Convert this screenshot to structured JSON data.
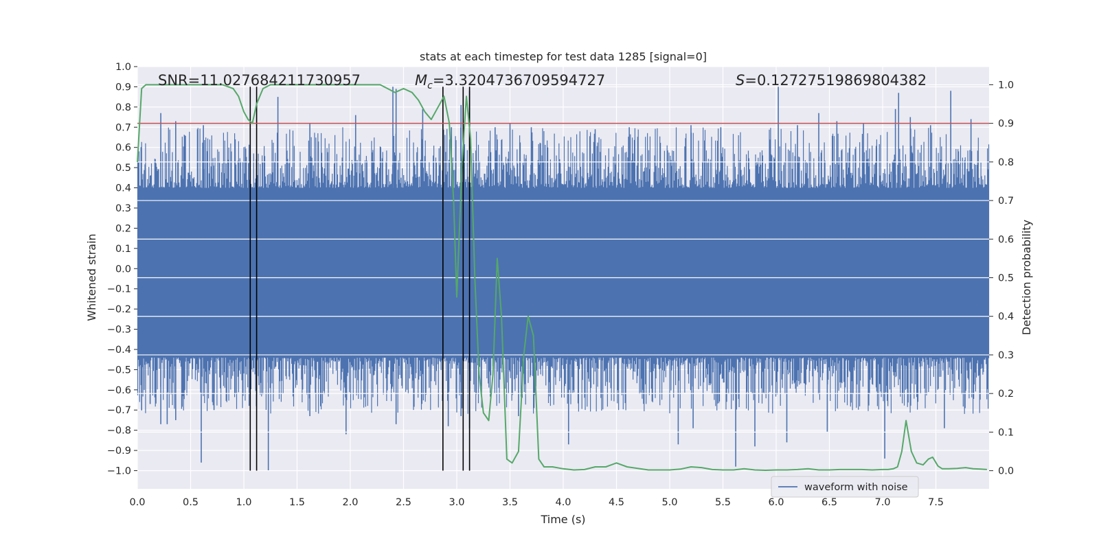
{
  "chart_data": {
    "type": "line",
    "title": "stats at each timestep for test data 1285 [signal=0]",
    "xlabel": "Time (s)",
    "ylabel": "Whitened strain",
    "y2label": "Detection probability",
    "xlim": [
      0.0,
      8.0
    ],
    "ylim": [
      -1.09,
      1.0
    ],
    "y2lim": [
      -0.047,
      1.047
    ],
    "xticks": [
      0.0,
      0.5,
      1.0,
      1.5,
      2.0,
      2.5,
      3.0,
      3.5,
      4.0,
      4.5,
      5.0,
      5.5,
      6.0,
      6.5,
      7.0,
      7.5
    ],
    "xtick_labels": [
      "0.0",
      "0.5",
      "1.0",
      "1.5",
      "2.0",
      "2.5",
      "3.0",
      "3.5",
      "4.0",
      "4.5",
      "5.0",
      "5.5",
      "6.0",
      "6.5",
      "7.0",
      "7.5"
    ],
    "yticks": [
      1.0,
      0.9,
      0.8,
      0.7,
      0.6,
      0.5,
      0.4,
      0.3,
      0.2,
      0.1,
      0.0,
      -0.1,
      -0.2,
      -0.3,
      -0.4,
      -0.5,
      -0.6,
      -0.7,
      -0.8,
      -0.9,
      -1.0
    ],
    "ytick_labels": [
      "1.0",
      "0.9",
      "0.8",
      "0.7",
      "0.6",
      "0.5",
      "0.4",
      "0.3",
      "0.2",
      "0.1",
      "0.0",
      "−0.1",
      "−0.2",
      "−0.3",
      "−0.4",
      "−0.5",
      "−0.6",
      "−0.7",
      "−0.8",
      "−0.9",
      "−1.0"
    ],
    "y2ticks": [
      1.0,
      0.9,
      0.8,
      0.7,
      0.6,
      0.5,
      0.4,
      0.3,
      0.2,
      0.1,
      0.0
    ],
    "y2tick_labels": [
      "1.0",
      "0.9",
      "0.8",
      "0.7",
      "0.6",
      "0.5",
      "0.4",
      "0.3",
      "0.2",
      "0.1",
      "0.0"
    ],
    "annotations": {
      "snr": "SNR=11.027684211730957",
      "mc_symbol": "M",
      "mc_sub": "c",
      "mc_value": "=3.3204736709594727",
      "s_symbol": "S",
      "s_value": "=0.12727519869804382"
    },
    "threshold": {
      "y2": 0.9,
      "color": "#c44e52"
    },
    "vertical_lines": [
      1.06,
      1.12,
      2.87,
      3.06,
      3.12
    ],
    "waveform": {
      "name": "waveform with noise",
      "color": "#4c72b0",
      "core_lo": -0.44,
      "core_hi": 0.4,
      "n_spikes": 1300,
      "peak_up": [
        [
          0.22,
          0.77
        ],
        [
          0.36,
          0.73
        ],
        [
          0.62,
          0.71
        ],
        [
          1.32,
          0.85
        ],
        [
          1.62,
          0.72
        ],
        [
          2.05,
          0.76
        ],
        [
          2.4,
          0.9
        ],
        [
          2.43,
          0.89
        ],
        [
          2.68,
          0.79
        ],
        [
          2.95,
          0.7
        ],
        [
          3.04,
          0.81
        ],
        [
          3.12,
          0.88
        ],
        [
          3.36,
          0.7
        ],
        [
          3.5,
          0.72
        ],
        [
          3.7,
          0.7
        ],
        [
          4.3,
          0.69
        ],
        [
          4.62,
          0.7
        ],
        [
          5.2,
          0.71
        ],
        [
          5.48,
          0.7
        ],
        [
          6.02,
          0.9
        ],
        [
          6.2,
          0.71
        ],
        [
          6.4,
          0.77
        ],
        [
          6.57,
          0.73
        ],
        [
          6.82,
          0.72
        ],
        [
          7.12,
          0.79
        ],
        [
          7.15,
          0.87
        ],
        [
          7.26,
          0.75
        ],
        [
          7.45,
          0.71
        ],
        [
          7.64,
          0.88
        ],
        [
          7.83,
          0.74
        ]
      ],
      "peak_down": [
        [
          0.04,
          -0.7
        ],
        [
          0.12,
          -0.67
        ],
        [
          0.22,
          -0.77
        ],
        [
          0.28,
          -0.77
        ],
        [
          0.36,
          -0.75
        ],
        [
          0.6,
          -0.96
        ],
        [
          0.72,
          -0.7
        ],
        [
          1.23,
          -1.0
        ],
        [
          1.62,
          -0.73
        ],
        [
          1.96,
          -0.82
        ],
        [
          2.43,
          -0.77
        ],
        [
          2.92,
          -0.78
        ],
        [
          3.04,
          -0.73
        ],
        [
          3.12,
          -0.79
        ],
        [
          3.58,
          -0.73
        ],
        [
          4.05,
          -0.87
        ],
        [
          5.08,
          -0.87
        ],
        [
          5.22,
          -0.79
        ],
        [
          5.62,
          -0.98
        ],
        [
          5.8,
          -0.88
        ],
        [
          6.1,
          -0.86
        ],
        [
          6.48,
          -0.81
        ],
        [
          7.02,
          -0.94
        ],
        [
          7.58,
          -0.79
        ]
      ]
    },
    "detection_probability": {
      "name": "detection probability",
      "color": "#55a868",
      "x": [
        0.0,
        0.04,
        0.08,
        0.12,
        0.2,
        0.3,
        0.4,
        0.5,
        0.6,
        0.7,
        0.8,
        0.9,
        0.95,
        1.0,
        1.04,
        1.08,
        1.12,
        1.18,
        1.25,
        1.35,
        1.5,
        1.7,
        1.9,
        2.1,
        2.2,
        2.28,
        2.35,
        2.42,
        2.5,
        2.58,
        2.64,
        2.7,
        2.76,
        2.82,
        2.88,
        2.93,
        2.97,
        3.0,
        3.05,
        3.09,
        3.13,
        3.17,
        3.21,
        3.25,
        3.3,
        3.34,
        3.38,
        3.42,
        3.47,
        3.52,
        3.58,
        3.63,
        3.67,
        3.72,
        3.77,
        3.82,
        3.9,
        4.0,
        4.1,
        4.2,
        4.3,
        4.4,
        4.5,
        4.6,
        4.7,
        4.8,
        4.9,
        5.0,
        5.1,
        5.2,
        5.3,
        5.4,
        5.5,
        5.6,
        5.7,
        5.8,
        5.9,
        6.0,
        6.1,
        6.2,
        6.3,
        6.4,
        6.5,
        6.6,
        6.7,
        6.8,
        6.9,
        7.0,
        7.05,
        7.1,
        7.14,
        7.18,
        7.22,
        7.27,
        7.32,
        7.38,
        7.43,
        7.47,
        7.52,
        7.56,
        7.62,
        7.7,
        7.78,
        7.85,
        7.92,
        7.98
      ],
      "y": [
        0.8,
        0.99,
        1.0,
        1.0,
        1.0,
        1.0,
        1.0,
        1.0,
        1.0,
        1.0,
        1.0,
        0.99,
        0.97,
        0.93,
        0.91,
        0.9,
        0.95,
        0.99,
        1.0,
        1.0,
        1.0,
        1.0,
        1.0,
        1.0,
        1.0,
        1.0,
        0.99,
        0.98,
        0.99,
        0.98,
        0.96,
        0.93,
        0.91,
        0.94,
        0.97,
        0.9,
        0.7,
        0.45,
        0.8,
        0.97,
        0.86,
        0.5,
        0.25,
        0.15,
        0.13,
        0.25,
        0.55,
        0.4,
        0.03,
        0.02,
        0.05,
        0.3,
        0.4,
        0.35,
        0.03,
        0.01,
        0.01,
        0.005,
        0.002,
        0.003,
        0.01,
        0.01,
        0.02,
        0.01,
        0.006,
        0.002,
        0.002,
        0.002,
        0.004,
        0.01,
        0.008,
        0.003,
        0.002,
        0.002,
        0.005,
        0.002,
        0.001,
        0.002,
        0.002,
        0.003,
        0.005,
        0.002,
        0.002,
        0.003,
        0.003,
        0.003,
        0.002,
        0.003,
        0.003,
        0.005,
        0.01,
        0.05,
        0.13,
        0.05,
        0.02,
        0.015,
        0.03,
        0.035,
        0.012,
        0.005,
        0.005,
        0.006,
        0.008,
        0.005,
        0.004,
        0.003
      ]
    },
    "legend": {
      "labels": [
        "waveform with noise"
      ],
      "placement": "lower-right"
    }
  }
}
